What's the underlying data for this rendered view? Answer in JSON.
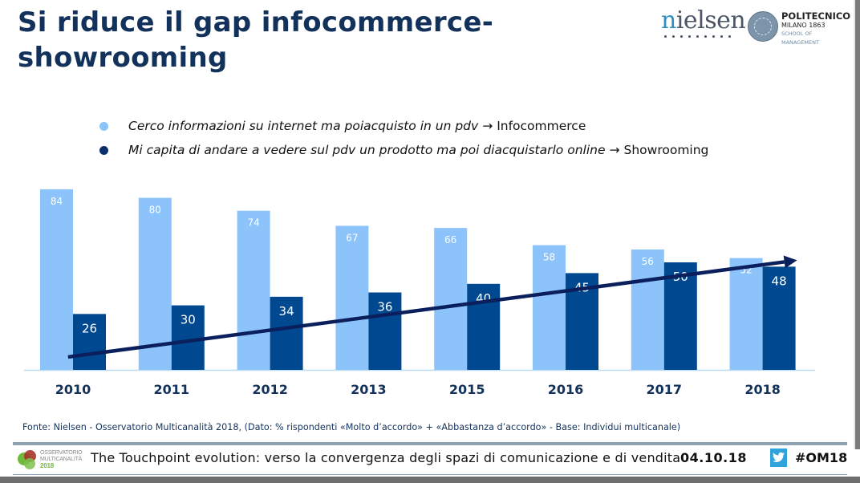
{
  "title": "Si riduce il gap infocommerce-showrooming",
  "title_line1": "Si riduce il gap infocommerce-",
  "title_line2": "showrooming",
  "logos": {
    "nielsen": "nielsen",
    "polimi_line1": "POLITECNICO",
    "polimi_line2": "MILANO 1863",
    "polimi_line3": "SCHOOL OF MANAGEMENT",
    "observatory_line1": "OSSERVATORIO",
    "observatory_line2": "MULTICANALITÀ",
    "observatory_line3": "2018"
  },
  "legend": [
    {
      "color": "#8cc3fb",
      "text_a": "Cerco informazioni su internet ma poi ",
      "text_b": "acquisto in un pdv",
      "arrow": "→",
      "label": "Infocommerce"
    },
    {
      "color": "#0a2f6b",
      "text_a": "Mi capita di andare a vedere sul pdv un prodotto ma poi di ",
      "text_b": "acquistarlo online",
      "arrow": "→",
      "label": "Showrooming"
    }
  ],
  "chart_data": {
    "type": "bar",
    "title": "Si riduce il gap infocommerce-showrooming",
    "xlabel": "",
    "ylabel": "% rispondenti",
    "categories": [
      "2010",
      "2011",
      "2012",
      "2013",
      "2015",
      "2016",
      "2017",
      "2018"
    ],
    "series": [
      {
        "name": "Infocommerce",
        "color": "#8cc3fb",
        "values": [
          84,
          80,
          74,
          67,
          66,
          58,
          56,
          52
        ]
      },
      {
        "name": "Showrooming",
        "color": "#004990",
        "values": [
          26,
          30,
          34,
          36,
          40,
          45,
          50,
          48
        ]
      }
    ],
    "ylim": [
      0,
      90
    ],
    "grid": false,
    "legend_position": "top",
    "annotations": [
      {
        "type": "trend-arrow",
        "color": "#0a1f5c",
        "from": {
          "category": "2010",
          "value": 6
        },
        "to": {
          "category": "2018",
          "value": 51
        }
      }
    ]
  },
  "source": "Fonte: Nielsen - Osservatorio Multicanalità 2018, (Dato: % rispondenti «Molto d’accordo» + «Abbastanza d’accordo» - Base: Individui multicanale)",
  "footer": {
    "text": "The Touchpoint evolution: verso la convergenza degli spazi di comunicazione e di vendita",
    "date": "04.10.18",
    "social_icon": "twitter-icon",
    "hashtag": "#OM18"
  }
}
